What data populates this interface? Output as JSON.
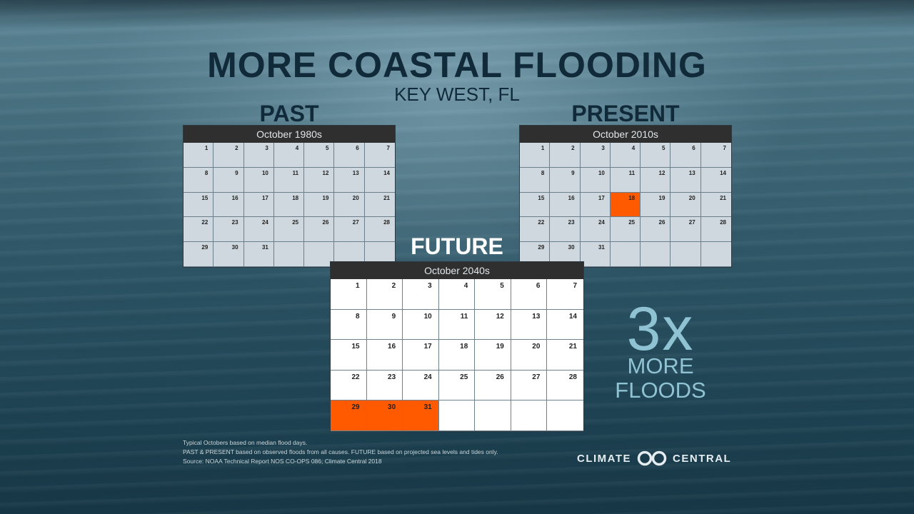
{
  "title": "MORE COASTAL FLOODING",
  "subtitle": "KEY WEST, FL",
  "calendars": {
    "past": {
      "heading": "PAST",
      "month_label": "October 1980s",
      "days": [
        "1",
        "2",
        "3",
        "4",
        "5",
        "6",
        "7",
        "8",
        "9",
        "10",
        "11",
        "12",
        "13",
        "14",
        "15",
        "16",
        "17",
        "18",
        "19",
        "20",
        "21",
        "22",
        "23",
        "24",
        "25",
        "26",
        "27",
        "28",
        "29",
        "30",
        "31",
        "",
        "",
        "",
        ""
      ],
      "flood_days": []
    },
    "present": {
      "heading": "PRESENT",
      "month_label": "October 2010s",
      "days": [
        "1",
        "2",
        "3",
        "4",
        "5",
        "6",
        "7",
        "8",
        "9",
        "10",
        "11",
        "12",
        "13",
        "14",
        "15",
        "16",
        "17",
        "18",
        "19",
        "20",
        "21",
        "22",
        "23",
        "24",
        "25",
        "26",
        "27",
        "28",
        "29",
        "30",
        "31",
        "",
        "",
        "",
        ""
      ],
      "flood_days": [
        "18"
      ]
    },
    "future": {
      "heading": "FUTURE",
      "month_label": "October 2040s",
      "days": [
        "1",
        "2",
        "3",
        "4",
        "5",
        "6",
        "7",
        "8",
        "9",
        "10",
        "11",
        "12",
        "13",
        "14",
        "15",
        "16",
        "17",
        "18",
        "19",
        "20",
        "21",
        "22",
        "23",
        "24",
        "25",
        "26",
        "27",
        "28",
        "29",
        "30",
        "31",
        "",
        "",
        "",
        ""
      ],
      "flood_days": [
        "29",
        "30",
        "31"
      ]
    }
  },
  "callout": {
    "multiplier": "3x",
    "line1": "MORE",
    "line2": "FLOODS"
  },
  "notes": {
    "line1": "Typical Octobers based on median flood days.",
    "line2": "PAST & PRESENT based on observed floods from all causes. FUTURE based on projected sea levels and tides only.",
    "line3": "Source: NOAA Technical Report NOS CO-OPS 086; Climate Central 2018"
  },
  "logo": {
    "left": "CLIMATE",
    "right": "CENTRAL"
  },
  "colors": {
    "flood": "#ff5a00",
    "title": "#102a3a",
    "accent": "#8fc3d3"
  }
}
